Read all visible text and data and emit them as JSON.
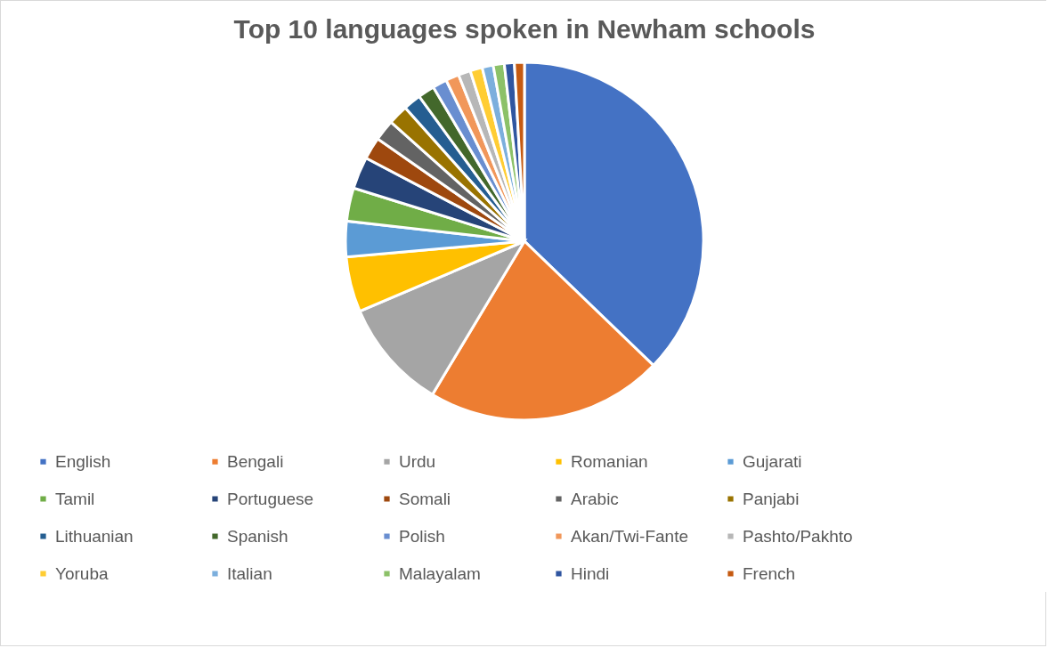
{
  "chart_data": {
    "type": "pie",
    "title": "Top 10 languages spoken in Newham schools",
    "categories": [
      "English",
      "Bengali",
      "Urdu",
      "Romanian",
      "Gujarati",
      "Tamil",
      "Portuguese",
      "Somali",
      "Arabic",
      "Panjabi",
      "Lithuanian",
      "Spanish",
      "Polish",
      "Akan/Twi-Fante",
      "Pashto/Pakhto",
      "Yoruba",
      "Italian",
      "Malayalam",
      "Hindi",
      "French"
    ],
    "values": [
      37.2,
      21.4,
      10.0,
      5.0,
      3.2,
      3.0,
      2.9,
      2.0,
      1.9,
      1.8,
      1.6,
      1.5,
      1.3,
      1.2,
      1.1,
      1.1,
      1.0,
      1.0,
      0.9,
      0.9
    ],
    "colors": [
      "#4472c4",
      "#ed7d31",
      "#a5a5a5",
      "#ffc000",
      "#5b9bd5",
      "#70ad47",
      "#264478",
      "#9e480e",
      "#636363",
      "#997300",
      "#255e91",
      "#43682b",
      "#698ed0",
      "#f1975a",
      "#b7b7b7",
      "#ffcd33",
      "#7cafdd",
      "#8cc168",
      "#2f55a0",
      "#c55a11"
    ],
    "legend": "bottom"
  }
}
